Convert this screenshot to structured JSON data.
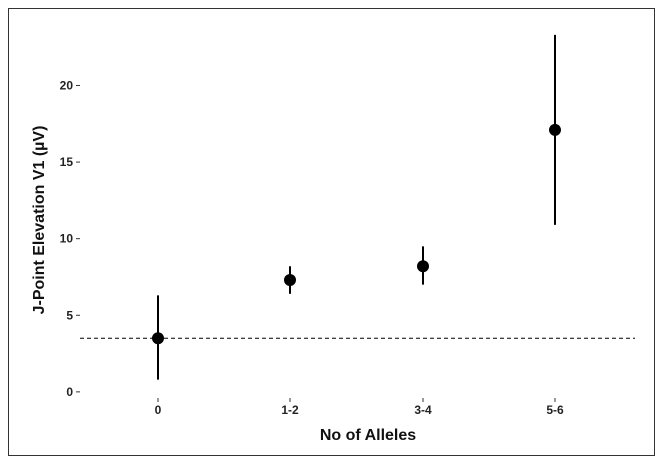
{
  "chart_data": {
    "type": "scatter",
    "xlabel": "No of Alleles",
    "ylabel": "J-Point Elevation V1 (µV)",
    "categories": [
      "0",
      "1-2",
      "3-4",
      "5-6"
    ],
    "series": [
      {
        "values": [
          3.5,
          7.3,
          8.2,
          17.1
        ],
        "lower": [
          0.8,
          6.4,
          7.0,
          10.9
        ],
        "upper": [
          6.3,
          8.2,
          9.5,
          23.3
        ]
      }
    ],
    "reference_line": {
      "y": 3.5,
      "style": "dashed"
    },
    "yticks": [
      0,
      5,
      10,
      15,
      20
    ],
    "ylim": [
      -0.4,
      24.6
    ],
    "grid": false,
    "legend": "none",
    "colors": {
      "point": "#000000",
      "reference": "#000000",
      "frame": "#333333"
    }
  }
}
